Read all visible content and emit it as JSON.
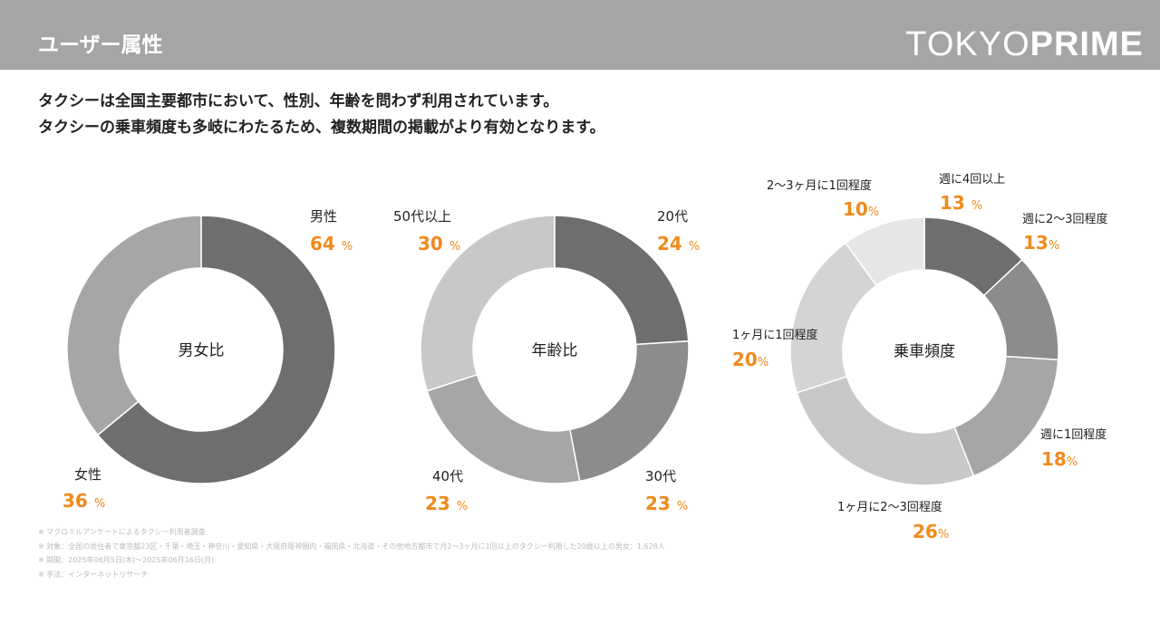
{
  "header": {
    "title": "ユーザー属性",
    "logo_light": "TOKYO",
    "logo_bold": "PRIME"
  },
  "lead": [
    "タクシーは全国主要都市において、性別、年齢を問わず利用されています。",
    "タクシーの乗車頻度も多岐にわたるため、複数期間の掲載がより有効となります。"
  ],
  "chart_data": [
    {
      "type": "pie",
      "title": "男女比",
      "categories": [
        "男性",
        "女性"
      ],
      "values": [
        64,
        36
      ],
      "colors": [
        "#6e6e6e",
        "#a6a6a6"
      ],
      "unit": "%"
    },
    {
      "type": "pie",
      "title": "年齢比",
      "categories": [
        "20代",
        "30代",
        "40代",
        "50代以上"
      ],
      "values": [
        24,
        23,
        23,
        30
      ],
      "colors": [
        "#6e6e6e",
        "#8c8c8c",
        "#a6a6a6",
        "#c8c8c8"
      ],
      "unit": "%"
    },
    {
      "type": "pie",
      "title": "乗車頻度",
      "categories": [
        "週に4回以上",
        "週に2〜3回程度",
        "週に1回程度",
        "1ヶ月に2〜3回程度",
        "1ヶ月に1回程度",
        "2〜3ヶ月に1回程度"
      ],
      "values": [
        13,
        13,
        18,
        26,
        20,
        10
      ],
      "colors": [
        "#6e6e6e",
        "#8c8c8c",
        "#a6a6a6",
        "#c8c8c8",
        "#d4d4d4",
        "#e6e6e6"
      ],
      "unit": "%"
    }
  ],
  "notes": [
    "※ マクロミルアンケートによるタクシー利用者調査",
    "※ 対象：全国の居住者で東京都23区・千葉・埼玉・神奈川・愛知県・大阪府阪神圏内・福岡県・北海道・その他地方都市で月2〜3ヶ月に1回以上のタクシー利用した20歳以上の男女：1,628人",
    "※ 期間：2025年06月5日(木)〜2025年06月16日(月)",
    "※ 手法：インターネットリサーチ"
  ]
}
